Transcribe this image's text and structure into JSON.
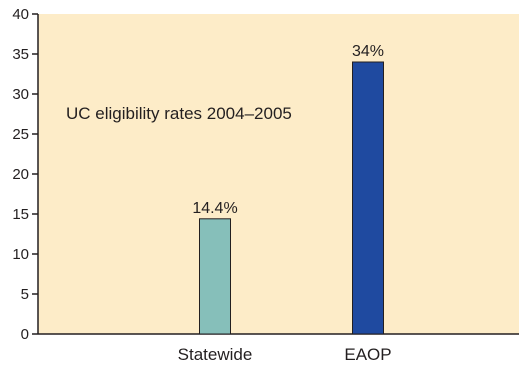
{
  "chart_data": {
    "type": "bar",
    "title": "UC eligibility rates 2004–2005",
    "categories": [
      "Statewide",
      "EAOP"
    ],
    "values": [
      14.4,
      34
    ],
    "data_labels": [
      "14.4%",
      "34%"
    ],
    "bar_colors": [
      "#86bfba",
      "#1f4aa0"
    ],
    "ylim": [
      0,
      40
    ],
    "yticks": [
      0,
      5,
      10,
      15,
      20,
      25,
      30,
      35,
      40
    ],
    "xlabel": "",
    "ylabel": "",
    "grid": false,
    "legend": false
  },
  "colors": {
    "plot_background": "#fdecc8",
    "axis": "#231f20",
    "bar_outline": "#231f20"
  }
}
